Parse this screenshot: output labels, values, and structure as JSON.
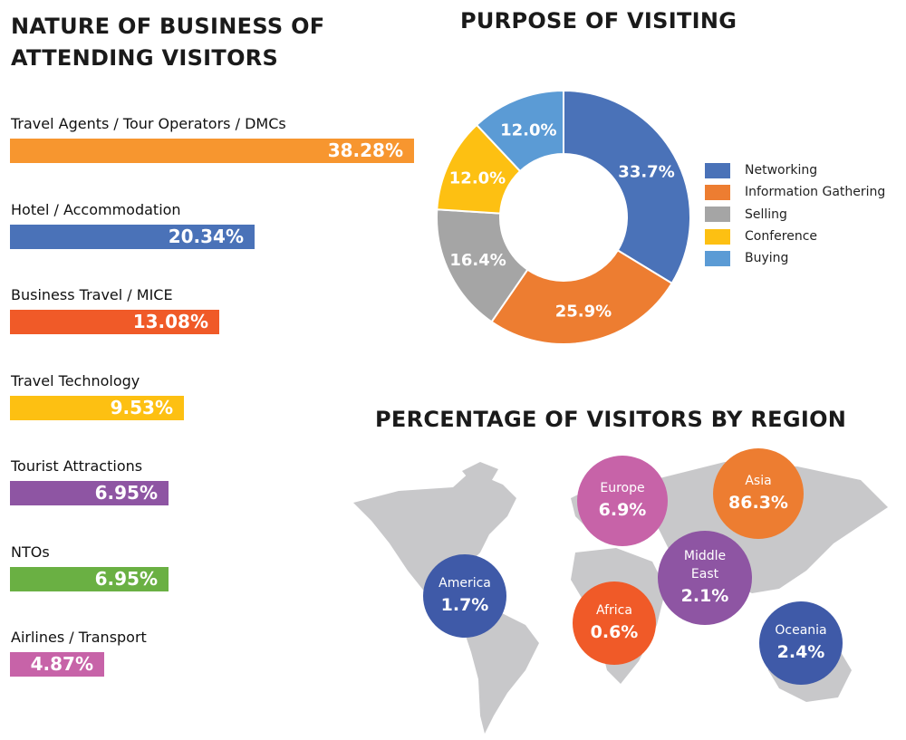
{
  "chart_data": [
    {
      "type": "bar",
      "orientation": "horizontal",
      "title": "NATURE OF BUSINESS OF ATTENDING VISITORS",
      "categories": [
        "Travel Agents / Tour Operators / DMCs",
        "Hotel / Accommodation",
        "Business Travel / MICE",
        "Travel Technology",
        "Tourist Attractions",
        "NTOs",
        "Airlines / Transport"
      ],
      "values": [
        38.28,
        20.34,
        13.08,
        9.53,
        6.95,
        6.95,
        4.87
      ],
      "labels": [
        "38.28%",
        "20.34%",
        "13.08%",
        "9.53%",
        "6.95%",
        "6.95%",
        "4.87%"
      ],
      "colors": [
        "#f7962f",
        "#4a72b8",
        "#f05a28",
        "#fdc012",
        "#8e55a3",
        "#6ab043",
        "#c763a8"
      ]
    },
    {
      "type": "pie",
      "donut": true,
      "title": "PURPOSE OF VISITING",
      "categories": [
        "Networking",
        "Information Gathering",
        "Selling",
        "Conference",
        "Buying"
      ],
      "values": [
        33.7,
        25.9,
        16.4,
        12.0,
        12.0
      ],
      "labels": [
        "33.7%",
        "25.9%",
        "16.4%",
        "12.0%",
        "12.0%"
      ],
      "colors": [
        "#4a72b8",
        "#ed7d31",
        "#a5a5a5",
        "#fdc012",
        "#5b9bd5"
      ],
      "legend": "right"
    },
    {
      "type": "bubble-map",
      "title": "PERCENTAGE OF VISITORS BY REGION",
      "regions": [
        {
          "name": "Europe",
          "value": "6.9%",
          "color": "#c763a8"
        },
        {
          "name": "Asia",
          "value": "86.3%",
          "color": "#ed7d31"
        },
        {
          "name": "Middle East",
          "value": "2.1%",
          "color": "#8e55a3"
        },
        {
          "name": "America",
          "value": "1.7%",
          "color": "#3f5aa8"
        },
        {
          "name": "Africa",
          "value": "0.6%",
          "color": "#f05a28"
        },
        {
          "name": "Oceania",
          "value": "2.4%",
          "color": "#3f5aa8"
        }
      ]
    }
  ]
}
